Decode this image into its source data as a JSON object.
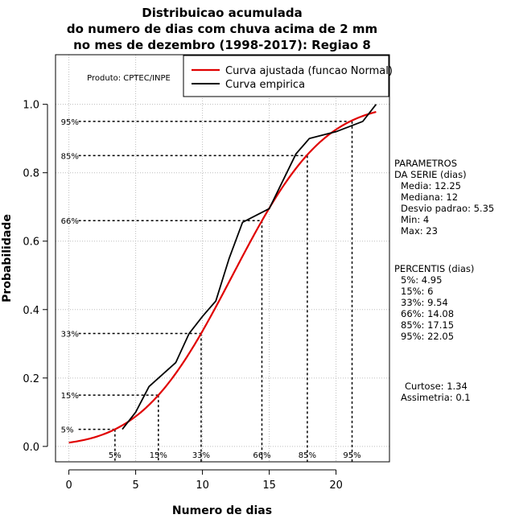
{
  "chart_data": {
    "type": "line",
    "title_lines": [
      "Distribuicao acumulada",
      "do numero de dias com chuva acima de 2 mm",
      "no mes de dezembro (1998-2017): Regiao 8"
    ],
    "xlabel": "Numero de dias",
    "ylabel": "Probabilidade",
    "xlim": [
      -1,
      24
    ],
    "ylim": [
      -0.045,
      1.145
    ],
    "xticks": [
      0,
      5,
      10,
      15,
      20
    ],
    "yticks": [
      0.0,
      0.2,
      0.4,
      0.6,
      0.8,
      1.0
    ],
    "ytick_labels": [
      "0.0",
      "0.2",
      "0.4",
      "0.6",
      "0.8",
      "1.0"
    ],
    "grid": true,
    "source_label": "Produto: CPTEC/INPE",
    "legend": {
      "position": "top-right",
      "entries": [
        {
          "label": "Curva ajustada (funcao Normal)",
          "color": "#e00000"
        },
        {
          "label": "Curva empirica",
          "color": "#000000"
        }
      ]
    },
    "series": [
      {
        "name": "Curva ajustada (funcao Normal)",
        "color": "#e00000",
        "distribution": "normal",
        "mean": 12.25,
        "sd": 5.35,
        "x_range": [
          0,
          23
        ]
      },
      {
        "name": "Curva empirica",
        "color": "#000000",
        "x": [
          4,
          5,
          6,
          7,
          8,
          9,
          10,
          11,
          12,
          13,
          14,
          15,
          16,
          17,
          18,
          19,
          20,
          21,
          22,
          23
        ],
        "y": [
          0.05,
          0.1,
          0.175,
          0.21,
          0.245,
          0.33,
          0.38,
          0.425,
          0.55,
          0.655,
          0.675,
          0.695,
          0.775,
          0.855,
          0.9,
          0.91,
          0.92,
          0.935,
          0.95,
          1.0
        ]
      }
    ],
    "percentile_guides": [
      {
        "label": "5%",
        "x": 3.45,
        "y": 0.05
      },
      {
        "label": "15%",
        "x": 6.7,
        "y": 0.15
      },
      {
        "label": "33%",
        "x": 9.9,
        "y": 0.33
      },
      {
        "label": "66%",
        "x": 14.45,
        "y": 0.66
      },
      {
        "label": "85%",
        "x": 17.85,
        "y": 0.85
      },
      {
        "label": "95%",
        "x": 21.2,
        "y": 0.95
      }
    ],
    "parametros": {
      "heading_lines": [
        "PARAMETROS",
        "DA SERIE (dias)"
      ],
      "items": [
        "Media: 12.25",
        "Mediana: 12",
        "Desvio padrao: 5.35",
        "Min: 4",
        "Max: 23"
      ]
    },
    "percentis": {
      "heading": "PERCENTIS (dias)",
      "items": [
        "5%: 4.95",
        "15%: 6",
        "33%: 9.54",
        "66%: 14.08",
        "85%: 17.15",
        "95%: 22.05"
      ]
    },
    "curtose": "Curtose: 1.34",
    "assimetria": "Assimetria: 0.1"
  }
}
